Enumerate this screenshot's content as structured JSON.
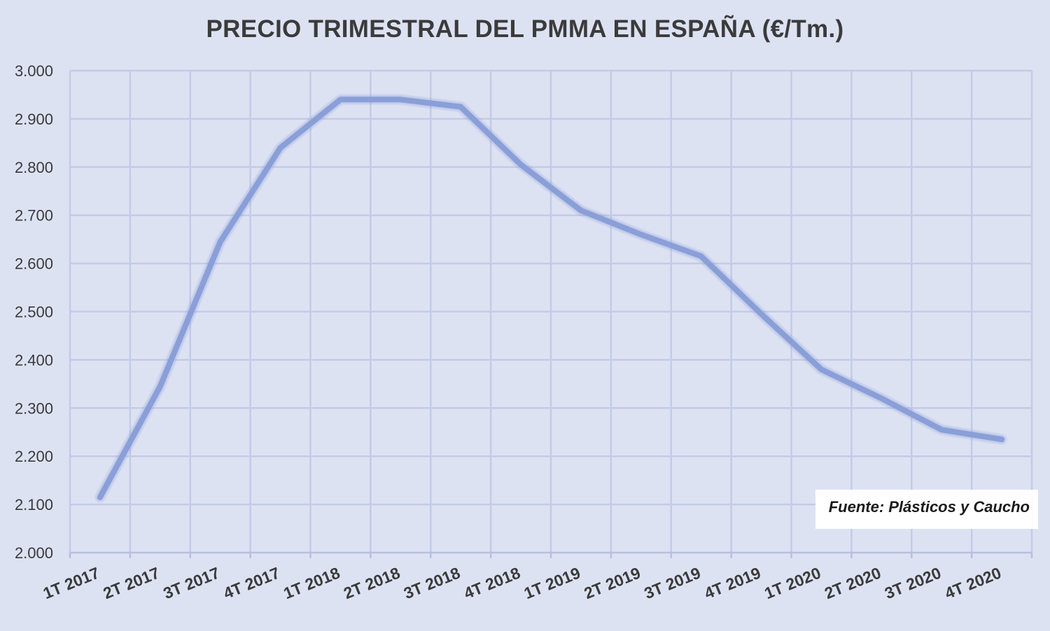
{
  "chart_data": {
    "type": "line",
    "title": "PRECIO TRIMESTRAL DEL PMMA EN ESPAÑA (€/Tm.)",
    "xlabel": "",
    "ylabel": "",
    "categories": [
      "1T 2017",
      "2T 2017",
      "3T 2017",
      "4T 2017",
      "1T 2018",
      "2T 2018",
      "3T 2018",
      "4T 2018",
      "1T 2019",
      "2T 2019",
      "3T 2019",
      "4T 2019",
      "1T 2020",
      "2T 2020",
      "3T 2020",
      "4T 2020"
    ],
    "series": [
      {
        "values": [
          2115,
          2345,
          2645,
          2840,
          2940,
          2940,
          2925,
          2805,
          2710,
          2660,
          2615,
          2495,
          2380,
          2320,
          2255,
          2235
        ],
        "color": "#8a9fd8"
      }
    ],
    "ylim": [
      2000,
      3000
    ],
    "yticks": [
      2000,
      2100,
      2200,
      2300,
      2400,
      2500,
      2600,
      2700,
      2800,
      2900,
      3000
    ],
    "ytick_labels": [
      "2.000",
      "2.100",
      "2.200",
      "2.300",
      "2.400",
      "2.500",
      "2.600",
      "2.700",
      "2.800",
      "2.900",
      "3.000"
    ],
    "grid": true,
    "legend": "none",
    "source_note": "Fuente: Plásticos y Caucho",
    "colors": {
      "background": "#dde2f3",
      "grid": "#c3cbe8",
      "line": "#8a9fd8"
    }
  }
}
